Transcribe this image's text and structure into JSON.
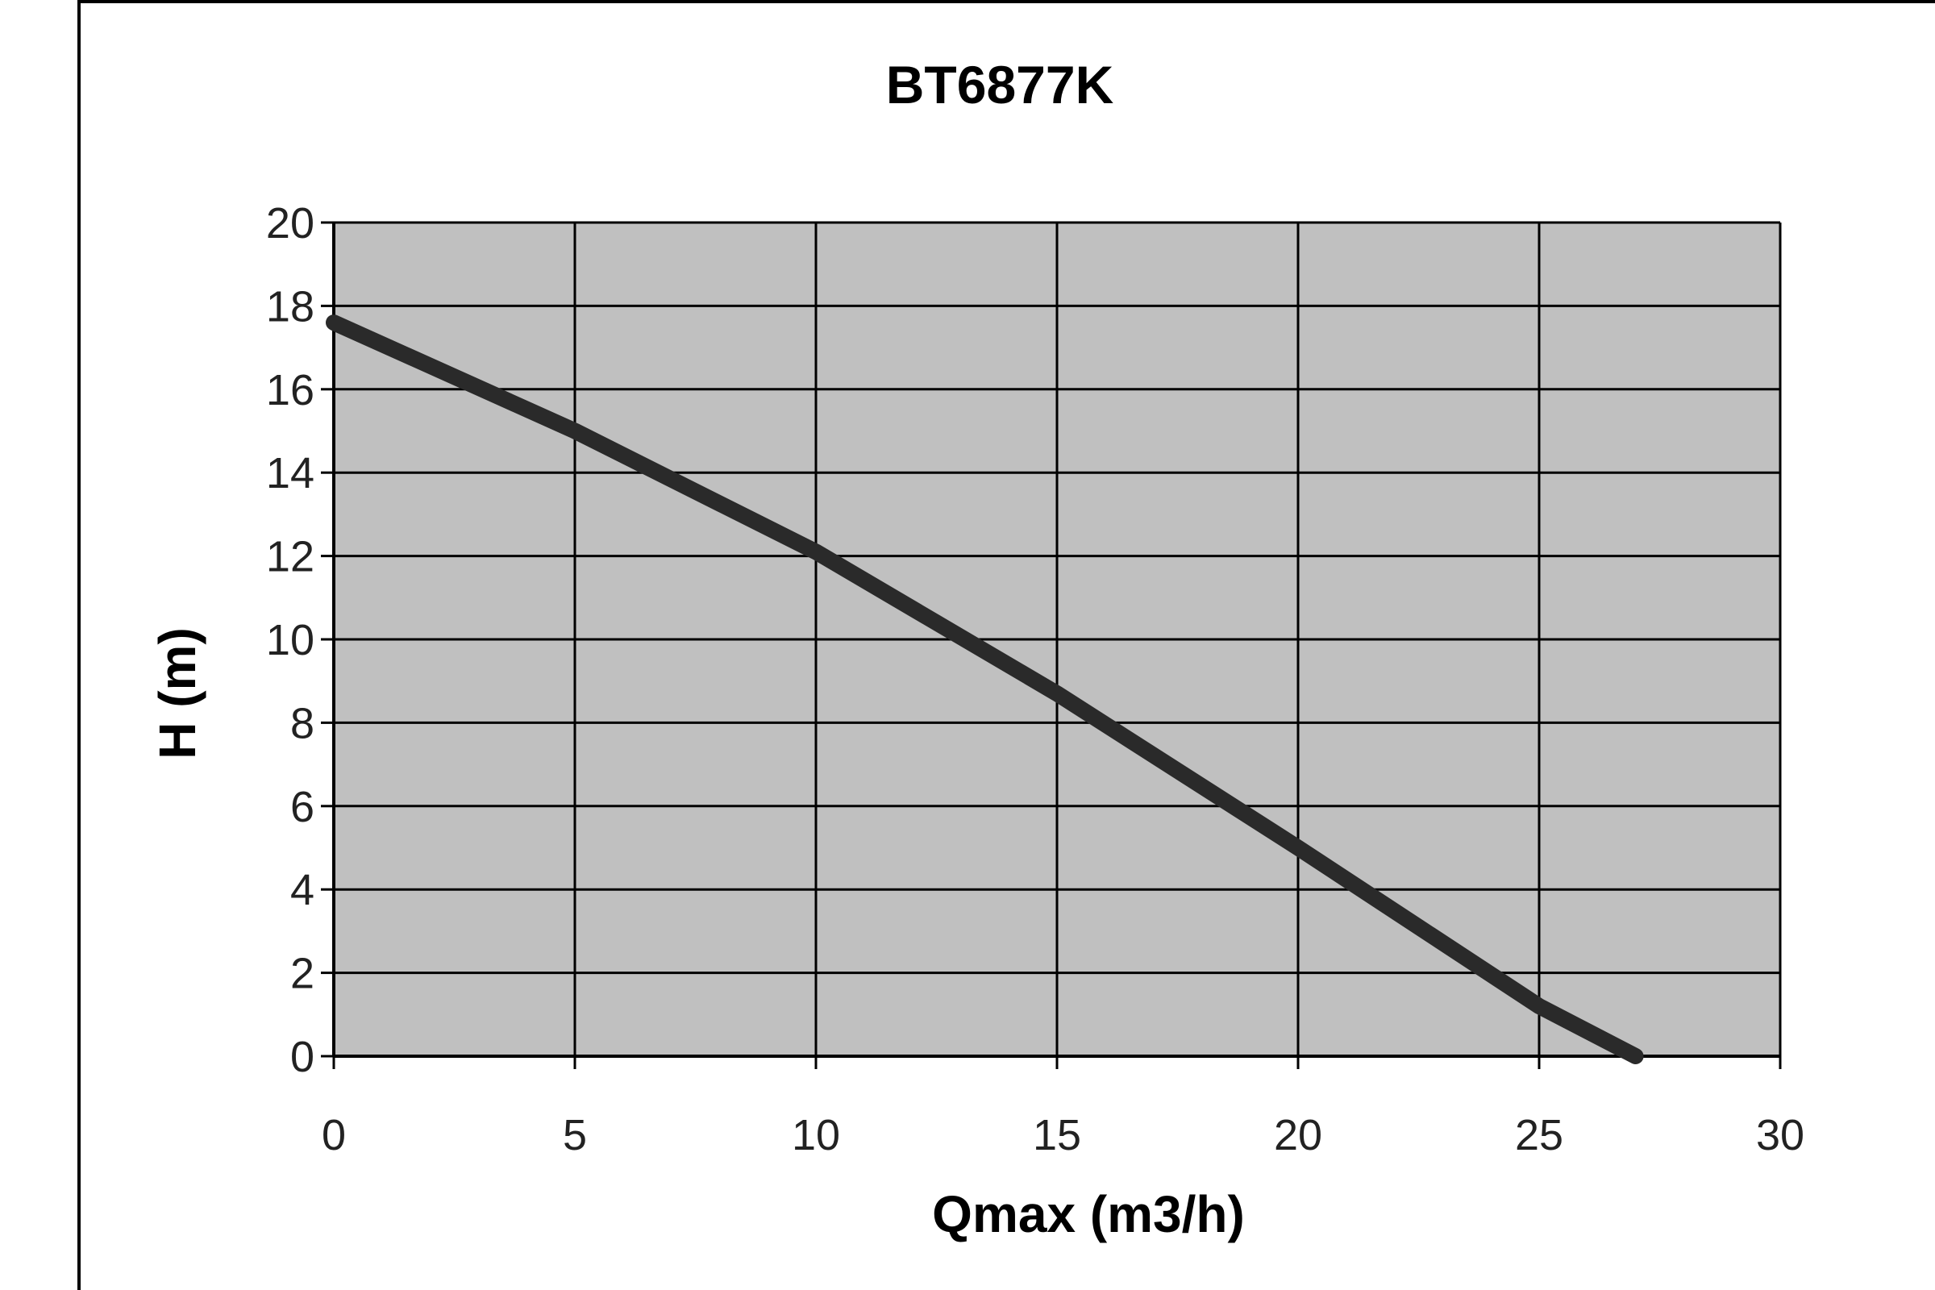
{
  "chart_data": {
    "type": "line",
    "title": "BT6877K",
    "xlabel": "Qmax (m3/h)",
    "ylabel": "H (m)",
    "xlim": [
      0,
      30
    ],
    "ylim": [
      0,
      20
    ],
    "x_ticks": [
      "0",
      "5",
      "10",
      "15",
      "20",
      "25",
      "30"
    ],
    "y_ticks": [
      "0",
      "2",
      "4",
      "6",
      "8",
      "10",
      "12",
      "14",
      "16",
      "18",
      "20"
    ],
    "grid": true,
    "legend": "none",
    "colors": {
      "plot_background": "#c0c0c0",
      "grid": "#000000",
      "line": "#2a2a2a"
    },
    "series": [
      {
        "x": [
          0,
          5,
          10,
          15,
          20,
          25,
          27
        ],
        "y": [
          17.6,
          15.0,
          12.1,
          8.7,
          5.0,
          1.2,
          0
        ]
      }
    ]
  }
}
